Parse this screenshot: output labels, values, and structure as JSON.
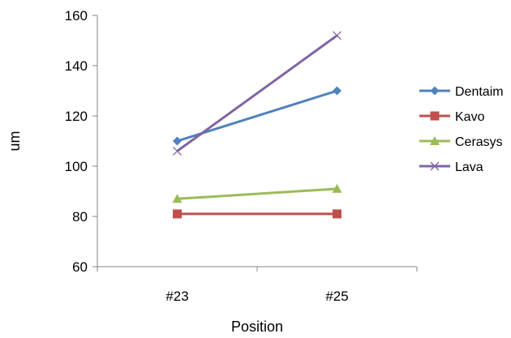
{
  "chart_data": {
    "type": "line",
    "title": "",
    "xlabel": "Position",
    "ylabel": "um",
    "categories": [
      "#23",
      "#25"
    ],
    "ylim": [
      60,
      160
    ],
    "yticks": [
      60,
      80,
      100,
      120,
      140,
      160
    ],
    "grid": false,
    "legend_position": "right",
    "series": [
      {
        "name": "Dentaim",
        "values": [
          110,
          130
        ],
        "color": "#4F81BD",
        "marker": "diamond"
      },
      {
        "name": "Kavo",
        "values": [
          81,
          81
        ],
        "color": "#C0504D",
        "marker": "square"
      },
      {
        "name": "Cerasys",
        "values": [
          87,
          91
        ],
        "color": "#9BBB59",
        "marker": "triangle"
      },
      {
        "name": "Lava",
        "values": [
          106,
          152
        ],
        "color": "#8064A2",
        "marker": "x"
      }
    ]
  }
}
